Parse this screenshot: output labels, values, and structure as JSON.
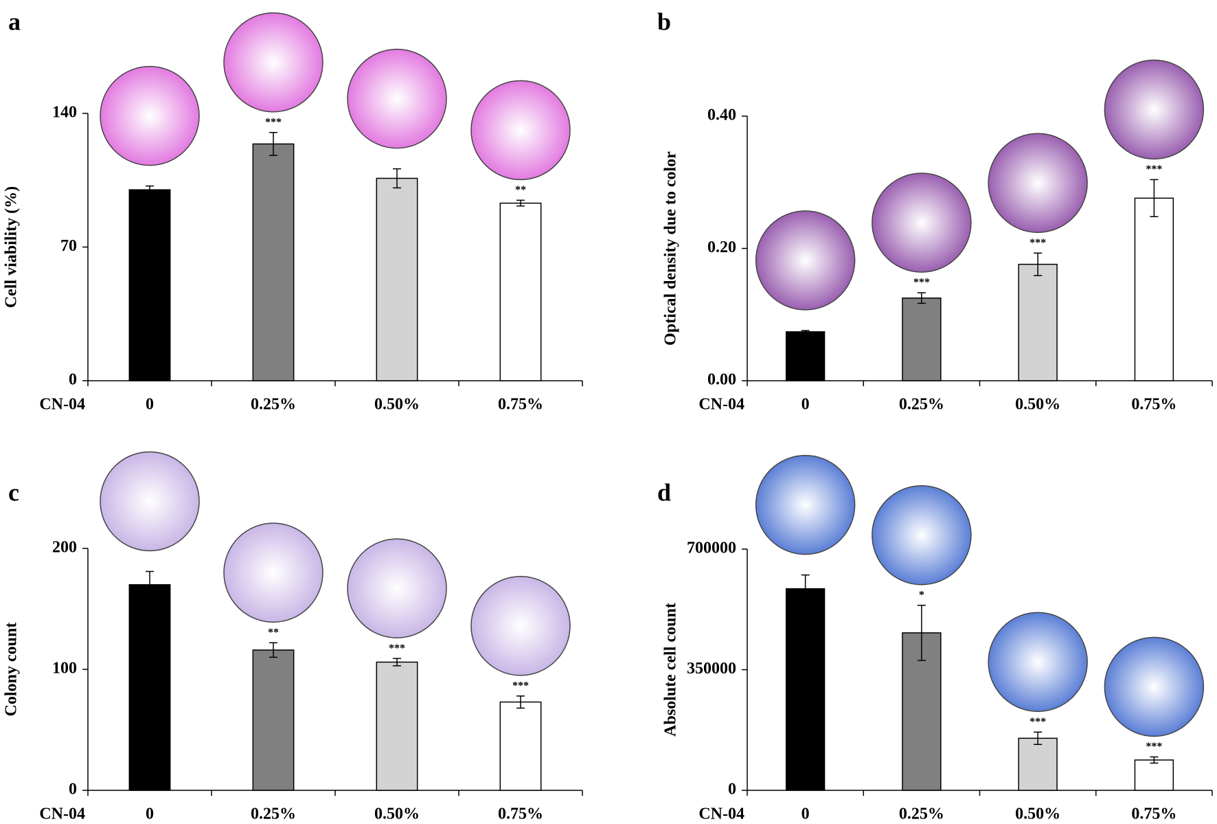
{
  "chart_data": [
    {
      "type": "bar",
      "panel_label": "a",
      "ylabel": "Cell viability (%)",
      "xlabel": "CN-04",
      "categories": [
        "0",
        "0.25%",
        "0.50%",
        "0.75%"
      ],
      "series": [
        {
          "values": [
            100,
            124,
            106,
            93
          ],
          "errors": [
            2,
            6,
            5,
            1.5
          ],
          "colors": [
            "#000000",
            "#808080",
            "#d3d3d3",
            "#ffffff"
          ]
        }
      ],
      "significance": [
        null,
        "***",
        null,
        "**"
      ],
      "ylim": [
        0,
        140
      ],
      "yticks": [
        0,
        70,
        140
      ],
      "image_tint": "#e27ae0"
    },
    {
      "type": "bar",
      "panel_label": "b",
      "ylabel": "Optical density due to color",
      "xlabel": "CN-04",
      "categories": [
        "0",
        "0.25%",
        "0.50%",
        "0.75%"
      ],
      "series": [
        {
          "values": [
            0.074,
            0.125,
            0.176,
            0.276
          ],
          "errors": [
            0.002,
            0.008,
            0.017,
            0.028
          ],
          "colors": [
            "#000000",
            "#808080",
            "#d3d3d3",
            "#ffffff"
          ]
        }
      ],
      "significance": [
        null,
        "***",
        "***",
        "***"
      ],
      "ylim": [
        0,
        0.4
      ],
      "yticks": [
        {
          "value": 0,
          "label": "0.00"
        },
        {
          "value": 0.2,
          "label": "0.20"
        },
        {
          "value": 0.4,
          "label": "0.40"
        }
      ],
      "image_tint": "#9a5fb0"
    },
    {
      "type": "bar",
      "panel_label": "c",
      "ylabel": "Colony count",
      "xlabel": "CN-04",
      "categories": [
        "0",
        "0.25%",
        "0.50%",
        "0.75%"
      ],
      "series": [
        {
          "values": [
            170,
            116,
            106,
            73
          ],
          "errors": [
            11,
            6,
            3,
            5
          ],
          "colors": [
            "#000000",
            "#808080",
            "#d3d3d3",
            "#ffffff"
          ]
        }
      ],
      "significance": [
        null,
        "**",
        "***",
        "***"
      ],
      "ylim": [
        0,
        200
      ],
      "yticks": [
        0,
        100,
        200
      ],
      "image_tint": "#c9b6e6"
    },
    {
      "type": "bar",
      "panel_label": "d",
      "ylabel": "Absolute cell count",
      "xlabel": "CN-04",
      "categories": [
        "0",
        "0.25%",
        "0.50%",
        "0.75%"
      ],
      "series": [
        {
          "values": [
            585000,
            457000,
            151000,
            88000
          ],
          "errors": [
            40000,
            80000,
            18000,
            9000
          ],
          "colors": [
            "#000000",
            "#808080",
            "#d3d3d3",
            "#ffffff"
          ]
        }
      ],
      "significance": [
        null,
        "*",
        "***",
        "***"
      ],
      "ylim": [
        0,
        700000
      ],
      "yticks": [
        0,
        350000,
        700000
      ],
      "image_tint": "#5b7fd6"
    }
  ]
}
